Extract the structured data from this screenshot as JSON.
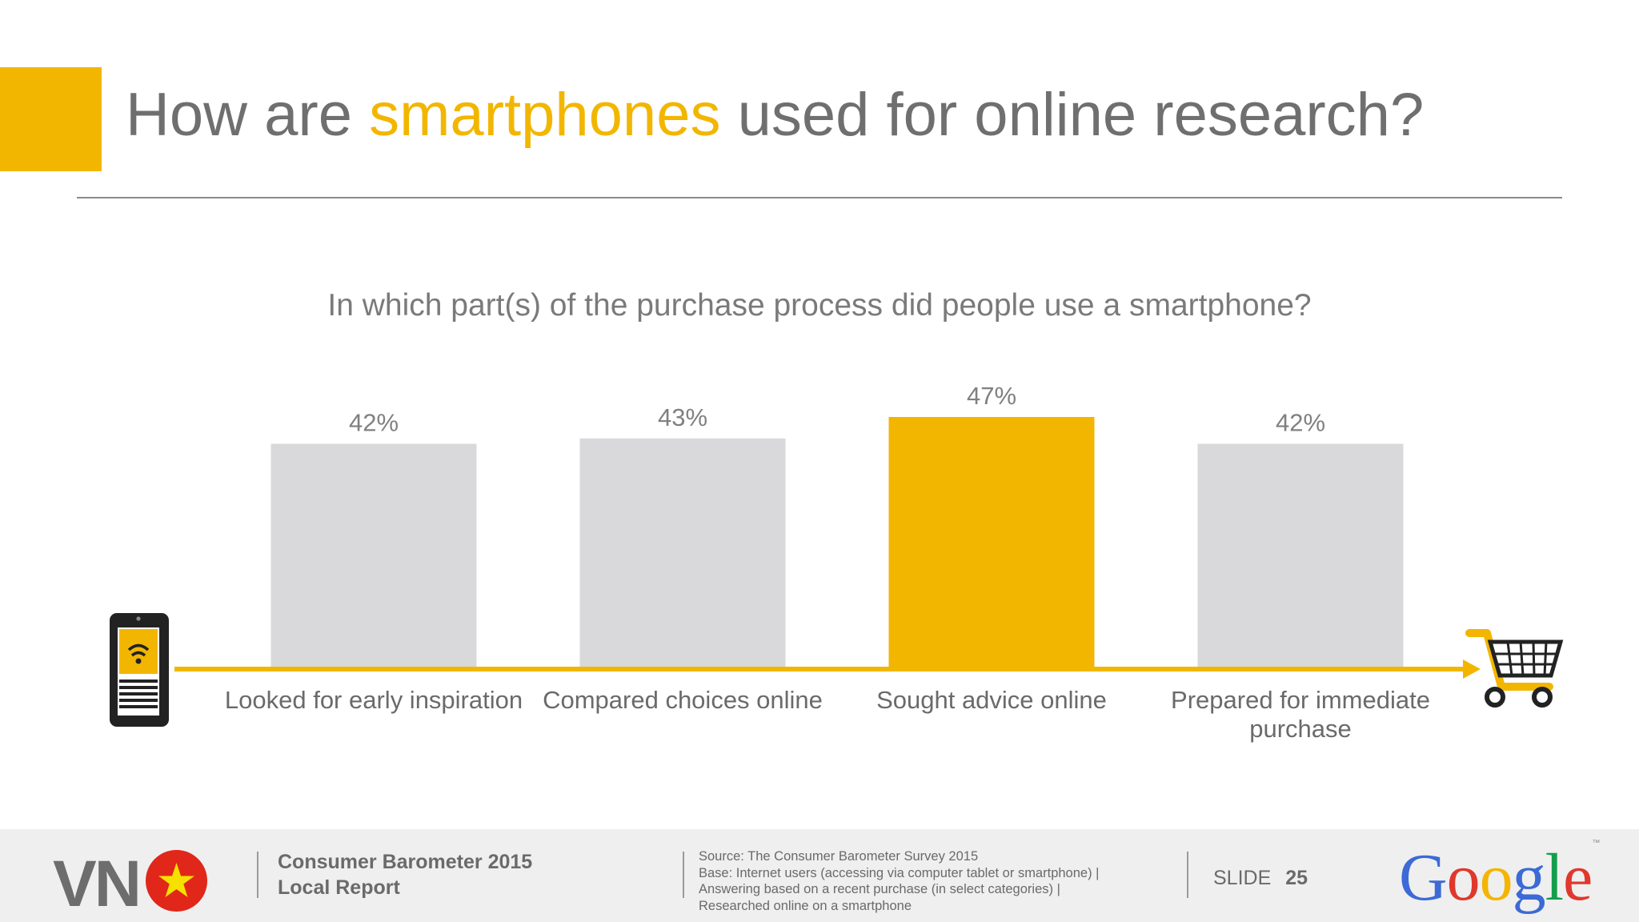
{
  "header": {
    "title_before": "How are ",
    "title_highlight": "smartphones",
    "title_after": " used for online research?"
  },
  "colors": {
    "accent": "#f2b600",
    "bar_default": "#d9d8da",
    "text_gray": "#6f6f6f"
  },
  "chart_data": {
    "type": "bar",
    "title": "In which part(s) of the purchase process did people use a smartphone?",
    "categories": [
      "Looked for early inspiration",
      "Compared choices online",
      "Sought advice online",
      "Prepared for immediate purchase"
    ],
    "values": [
      42,
      43,
      47,
      42
    ],
    "value_labels": [
      "42%",
      "43%",
      "47%",
      "42%"
    ],
    "unit": "%",
    "highlight_index": 2,
    "ylim": [
      0,
      47
    ],
    "grid": false,
    "legend": "none",
    "start_icon": "smartphone-wifi-icon",
    "end_icon": "shopping-cart-icon"
  },
  "footer": {
    "country_code": "VN",
    "flag_icon": "vietnam-flag-icon",
    "report_line1": "Consumer Barometer 2015",
    "report_line2": "Local Report",
    "source_lines": [
      "Source: The Consumer Barometer Survey 2015",
      "Base: Internet users (accessing via computer  tablet or smartphone) |",
      "Answering based on a recent purchase (in select categories) |",
      "Researched online on a smartphone"
    ],
    "slide_label": "SLIDE",
    "slide_number": "25",
    "logo_text": "Google",
    "logo_tm": "™"
  }
}
